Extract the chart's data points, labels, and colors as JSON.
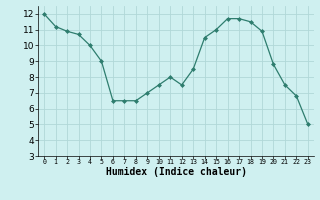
{
  "x": [
    0,
    1,
    2,
    3,
    4,
    5,
    6,
    7,
    8,
    9,
    10,
    11,
    12,
    13,
    14,
    15,
    16,
    17,
    18,
    19,
    20,
    21,
    22,
    23
  ],
  "y": [
    12,
    11.2,
    10.9,
    10.7,
    10.0,
    9.0,
    6.5,
    6.5,
    6.5,
    7.0,
    7.5,
    8.0,
    7.5,
    8.5,
    10.5,
    11.0,
    11.7,
    11.7,
    11.5,
    10.9,
    8.8,
    7.5,
    6.8,
    5.0
  ],
  "line_color": "#2e7d6e",
  "marker": "D",
  "marker_size": 2.0,
  "bg_color": "#cff0f0",
  "grid_color": "#b0d8d8",
  "xlabel": "Humidex (Indice chaleur)",
  "ylim": [
    3,
    12.5
  ],
  "xlim": [
    -0.5,
    23.5
  ],
  "yticks": [
    3,
    4,
    5,
    6,
    7,
    8,
    9,
    10,
    11,
    12
  ],
  "xticks": [
    0,
    1,
    2,
    3,
    4,
    5,
    6,
    7,
    8,
    9,
    10,
    11,
    12,
    13,
    14,
    15,
    16,
    17,
    18,
    19,
    20,
    21,
    22,
    23
  ],
  "xlabel_fontsize": 7,
  "tick_fontsize": 6.5,
  "linewidth": 0.9
}
